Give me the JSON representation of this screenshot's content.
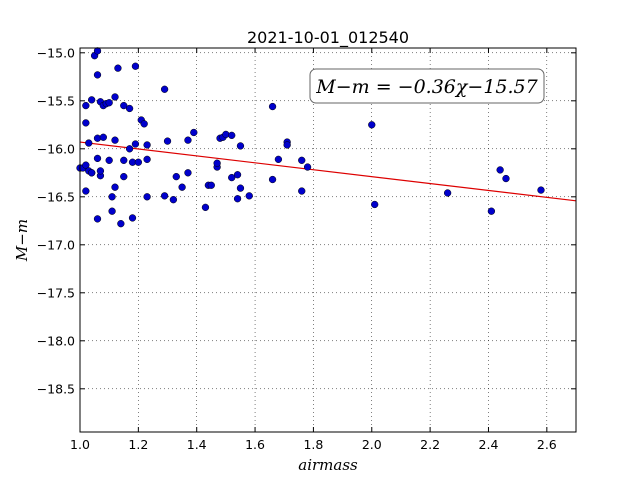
{
  "chart_data": {
    "type": "scatter",
    "title": "2021-10-01_012540",
    "xlabel": "airmass",
    "ylabel": "M−m",
    "xlim": [
      1.0,
      2.7
    ],
    "ylim": [
      -14.95,
      -18.95
    ],
    "y_inverted": true,
    "grid": true,
    "x_ticks": [
      1.0,
      1.2,
      1.4,
      1.6,
      1.8,
      2.0,
      2.2,
      2.4,
      2.6
    ],
    "x_tick_labels": [
      "1.0",
      "1.2",
      "1.4",
      "1.6",
      "1.8",
      "2.0",
      "2.2",
      "2.4",
      "2.6"
    ],
    "y_ticks": [
      -15.0,
      -15.5,
      -16.0,
      -16.5,
      -17.0,
      -17.5,
      -18.0,
      -18.5
    ],
    "y_tick_labels": [
      "−15.0",
      "−15.5",
      "−16.0",
      "−16.5",
      "−17.0",
      "−17.5",
      "−18.0",
      "−18.5"
    ],
    "annotation": "M−m = −0.36χ−15.57",
    "fit": {
      "slope": -0.36,
      "intercept": -15.57,
      "color": "#dd0000"
    },
    "point_color": "#0000cc",
    "points": [
      [
        1.0,
        -16.2
      ],
      [
        1.01,
        -16.2
      ],
      [
        1.02,
        -16.17
      ],
      [
        1.02,
        -15.55
      ],
      [
        1.02,
        -15.73
      ],
      [
        1.02,
        -16.44
      ],
      [
        1.03,
        -16.23
      ],
      [
        1.03,
        -15.94
      ],
      [
        1.04,
        -16.25
      ],
      [
        1.04,
        -15.49
      ],
      [
        1.04,
        -16.25
      ],
      [
        1.05,
        -15.03
      ],
      [
        1.06,
        -15.23
      ],
      [
        1.06,
        -14.98
      ],
      [
        1.06,
        -15.89
      ],
      [
        1.06,
        -16.1
      ],
      [
        1.06,
        -16.73
      ],
      [
        1.07,
        -15.51
      ],
      [
        1.07,
        -16.28
      ],
      [
        1.07,
        -16.23
      ],
      [
        1.08,
        -15.88
      ],
      [
        1.08,
        -15.55
      ],
      [
        1.09,
        -15.53
      ],
      [
        1.1,
        -16.12
      ],
      [
        1.1,
        -15.52
      ],
      [
        1.11,
        -16.5
      ],
      [
        1.11,
        -16.65
      ],
      [
        1.12,
        -15.46
      ],
      [
        1.12,
        -15.91
      ],
      [
        1.12,
        -16.4
      ],
      [
        1.13,
        -15.16
      ],
      [
        1.14,
        -16.78
      ],
      [
        1.15,
        -15.55
      ],
      [
        1.15,
        -16.12
      ],
      [
        1.15,
        -16.29
      ],
      [
        1.17,
        -15.58
      ],
      [
        1.17,
        -16.0
      ],
      [
        1.18,
        -16.14
      ],
      [
        1.18,
        -16.72
      ],
      [
        1.19,
        -15.95
      ],
      [
        1.19,
        -15.14
      ],
      [
        1.2,
        -16.14
      ],
      [
        1.21,
        -15.7
      ],
      [
        1.22,
        -15.74
      ],
      [
        1.23,
        -15.96
      ],
      [
        1.23,
        -16.11
      ],
      [
        1.23,
        -16.5
      ],
      [
        1.29,
        -15.38
      ],
      [
        1.29,
        -16.49
      ],
      [
        1.3,
        -15.92
      ],
      [
        1.32,
        -16.53
      ],
      [
        1.33,
        -16.29
      ],
      [
        1.35,
        -16.4
      ],
      [
        1.37,
        -15.91
      ],
      [
        1.37,
        -16.25
      ],
      [
        1.39,
        -15.83
      ],
      [
        1.43,
        -16.61
      ],
      [
        1.44,
        -16.38
      ],
      [
        1.45,
        -16.38
      ],
      [
        1.47,
        -16.19
      ],
      [
        1.47,
        -16.15
      ],
      [
        1.48,
        -15.89
      ],
      [
        1.49,
        -15.88
      ],
      [
        1.5,
        -15.85
      ],
      [
        1.52,
        -16.3
      ],
      [
        1.52,
        -15.86
      ],
      [
        1.54,
        -16.27
      ],
      [
        1.54,
        -16.52
      ],
      [
        1.55,
        -15.97
      ],
      [
        1.55,
        -16.41
      ],
      [
        1.58,
        -16.49
      ],
      [
        1.66,
        -16.32
      ],
      [
        1.66,
        -15.56
      ],
      [
        1.68,
        -16.11
      ],
      [
        1.71,
        -15.93
      ],
      [
        1.71,
        -15.96
      ],
      [
        1.76,
        -16.44
      ],
      [
        1.76,
        -16.12
      ],
      [
        1.78,
        -16.19
      ],
      [
        2.0,
        -15.75
      ],
      [
        2.01,
        -16.58
      ],
      [
        2.26,
        -16.46
      ],
      [
        2.41,
        -16.65
      ],
      [
        2.44,
        -16.22
      ],
      [
        2.46,
        -16.31
      ],
      [
        2.58,
        -16.43
      ]
    ]
  }
}
